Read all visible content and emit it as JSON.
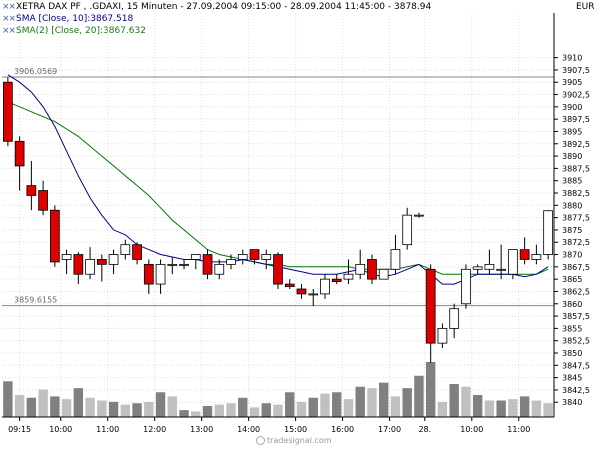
{
  "header": {
    "main_label": "XETRA DAX PF   , .GDAXI, 15 Minuten - 27.09.2004 09:15:00 - 28.09.2004 11:45:00 - 3878.94",
    "sma10_label": "SMA [Close, 10]:3867.518",
    "sma20_label": "SMA(2) [Close, 20]:3867.632",
    "currency": "EUR"
  },
  "watermark": "tradesignal.com",
  "colors": {
    "up_candle": "#ffffff",
    "down_candle": "#dd0000",
    "sma10": "#00008b",
    "sma20": "#007700",
    "grid": "#dddddd",
    "hline": "#888888",
    "volume_dark": "#808080",
    "volume_light": "#c0c0c0"
  },
  "chart_data": {
    "type": "candlestick",
    "ylim": [
      3837,
      3915
    ],
    "y_ticks": [
      3840,
      3842.5,
      3845,
      3847.5,
      3850,
      3852.5,
      3855,
      3857.5,
      3860,
      3862.5,
      3865,
      3867.5,
      3870,
      3872.5,
      3875,
      3877.5,
      3880,
      3882.5,
      3885,
      3887.5,
      3890,
      3892.5,
      3895,
      3897.5,
      3900,
      3902.5,
      3905,
      3907.5,
      3910
    ],
    "y_tick_labels": [
      "3840",
      "3842,5",
      "3845",
      "3847,5",
      "3850",
      "3852,5",
      "3855",
      "3857,5",
      "3860",
      "3862,5",
      "3865",
      "3867,5",
      "3870",
      "3872,5",
      "3875",
      "3877,5",
      "3880",
      "3882,5",
      "3885",
      "3887,5",
      "3890",
      "3892,5",
      "3895",
      "3897,5",
      "3900",
      "3902,5",
      "3905",
      "3907,5",
      "3910"
    ],
    "x_tick_labels": [
      {
        "bar": 1,
        "label": "09:15"
      },
      {
        "bar": 5,
        "label": "10:00"
      },
      {
        "bar": 9,
        "label": "11:00"
      },
      {
        "bar": 13,
        "label": "12:00"
      },
      {
        "bar": 17,
        "label": "13:00"
      },
      {
        "bar": 21,
        "label": "14:00"
      },
      {
        "bar": 25,
        "label": "15:00"
      },
      {
        "bar": 29,
        "label": "16:00"
      },
      {
        "bar": 33,
        "label": "17:00"
      },
      {
        "bar": 36,
        "label": "28."
      },
      {
        "bar": 40,
        "label": "10:00"
      },
      {
        "bar": 44,
        "label": "11:00"
      }
    ],
    "reference_lines": [
      {
        "value": 3906.0569,
        "label": "3906.0569"
      },
      {
        "value": 3859.6155,
        "label": "3859.6155"
      }
    ],
    "candles": [
      {
        "o": 3905,
        "h": 3906,
        "c": 3893,
        "l": 3892
      },
      {
        "o": 3893,
        "h": 3894,
        "c": 3888,
        "l": 3883
      },
      {
        "o": 3884,
        "h": 3889,
        "c": 3882,
        "l": 3879
      },
      {
        "o": 3883,
        "h": 3885,
        "c": 3879,
        "l": 3878
      },
      {
        "o": 3879,
        "h": 3880,
        "c": 3868.5,
        "l": 3867.5
      },
      {
        "o": 3869,
        "h": 3871,
        "c": 3870,
        "l": 3866
      },
      {
        "o": 3870,
        "h": 3870.5,
        "c": 3866,
        "l": 3864
      },
      {
        "o": 3866,
        "h": 3871.5,
        "c": 3869,
        "l": 3865
      },
      {
        "o": 3869,
        "h": 3870,
        "c": 3868,
        "l": 3864.5
      },
      {
        "o": 3868,
        "h": 3871,
        "c": 3870,
        "l": 3866
      },
      {
        "o": 3870,
        "h": 3873,
        "c": 3872,
        "l": 3869
      },
      {
        "o": 3872,
        "h": 3872.5,
        "c": 3869,
        "l": 3868
      },
      {
        "o": 3868,
        "h": 3869,
        "c": 3864,
        "l": 3862
      },
      {
        "o": 3864,
        "h": 3869,
        "c": 3868,
        "l": 3862
      },
      {
        "o": 3868,
        "h": 3869.5,
        "c": 3868,
        "l": 3866
      },
      {
        "o": 3868,
        "h": 3869,
        "c": 3868,
        "l": 3867
      },
      {
        "o": 3869,
        "h": 3870,
        "c": 3870,
        "l": 3867
      },
      {
        "o": 3870,
        "h": 3871,
        "c": 3866,
        "l": 3865
      },
      {
        "o": 3866,
        "h": 3869,
        "c": 3868,
        "l": 3865
      },
      {
        "o": 3868,
        "h": 3870,
        "c": 3869,
        "l": 3867
      },
      {
        "o": 3869,
        "h": 3871,
        "c": 3870,
        "l": 3868
      },
      {
        "o": 3871,
        "h": 3871,
        "c": 3869,
        "l": 3868
      },
      {
        "o": 3869,
        "h": 3871,
        "c": 3870,
        "l": 3867
      },
      {
        "o": 3870,
        "h": 3870.5,
        "c": 3864,
        "l": 3863
      },
      {
        "o": 3864,
        "h": 3865,
        "c": 3863.5,
        "l": 3863
      },
      {
        "o": 3863,
        "h": 3864,
        "c": 3862,
        "l": 3861
      },
      {
        "o": 3862,
        "h": 3863,
        "c": 3862,
        "l": 3859.5
      },
      {
        "o": 3862,
        "h": 3866,
        "c": 3865,
        "l": 3861
      },
      {
        "o": 3865,
        "h": 3866,
        "c": 3864.5,
        "l": 3864
      },
      {
        "o": 3865,
        "h": 3869,
        "c": 3866,
        "l": 3864
      },
      {
        "o": 3866,
        "h": 3871,
        "c": 3868,
        "l": 3865
      },
      {
        "o": 3869,
        "h": 3870,
        "c": 3865,
        "l": 3864
      },
      {
        "o": 3865,
        "h": 3867,
        "c": 3867,
        "l": 3865
      },
      {
        "o": 3867,
        "h": 3874,
        "c": 3871,
        "l": 3866
      },
      {
        "o": 3872,
        "h": 3879.5,
        "c": 3878,
        "l": 3871
      },
      {
        "o": 3878,
        "h": 3878.5,
        "c": 3878,
        "l": 3877.5
      },
      {
        "o": 3867,
        "h": 3868,
        "c": 3852,
        "l": 3848
      },
      {
        "o": 3852,
        "h": 3856,
        "c": 3855,
        "l": 3851
      },
      {
        "o": 3855,
        "h": 3860,
        "c": 3859,
        "l": 3853
      },
      {
        "o": 3860,
        "h": 3868,
        "c": 3867,
        "l": 3859
      },
      {
        "o": 3867,
        "h": 3868,
        "c": 3867.5,
        "l": 3866
      },
      {
        "o": 3867,
        "h": 3871,
        "c": 3868,
        "l": 3866
      },
      {
        "o": 3867,
        "h": 3872,
        "c": 3867,
        "l": 3865
      },
      {
        "o": 3866,
        "h": 3871,
        "c": 3871,
        "l": 3865
      },
      {
        "o": 3871,
        "h": 3873.5,
        "c": 3869,
        "l": 3868
      },
      {
        "o": 3869,
        "h": 3872,
        "c": 3870,
        "l": 3868
      },
      {
        "o": 3870,
        "h": 3879,
        "c": 3878.9,
        "l": 3869
      }
    ],
    "sma10": [
      3906.5,
      3905,
      3903,
      3900,
      3896,
      3891,
      3886,
      3881.5,
      3878,
      3875,
      3874,
      3872,
      3871,
      3870,
      3869.5,
      3869,
      3869,
      3868.5,
      3868.5,
      3868.5,
      3869,
      3868.5,
      3868,
      3867.5,
      3867,
      3866.5,
      3866,
      3866,
      3866,
      3866.5,
      3867,
      3866,
      3865.5,
      3866,
      3867,
      3868,
      3866,
      3864,
      3864,
      3865,
      3866,
      3866,
      3866,
      3866,
      3865.5,
      3866,
      3867.5
    ],
    "sma20": [
      3901,
      3900,
      3899,
      3898,
      3897,
      3895.5,
      3894,
      3892,
      3890,
      3888,
      3886,
      3884,
      3882,
      3879.5,
      3877,
      3875,
      3873,
      3871,
      3870,
      3869.5,
      3869,
      3868.5,
      3868,
      3868,
      3867.5,
      3867.5,
      3867.5,
      3867.5,
      3867.5,
      3867.5,
      3867,
      3867,
      3867,
      3867,
      3867.5,
      3868,
      3867,
      3866,
      3866,
      3866,
      3866,
      3866,
      3866,
      3866,
      3866,
      3866,
      3867
    ],
    "volume": [
      26,
      16,
      14,
      20,
      15,
      13,
      21,
      14,
      12,
      11,
      9,
      10,
      11,
      18,
      15,
      5,
      4,
      8,
      9,
      10,
      14,
      7,
      10,
      9,
      18,
      11,
      14,
      17,
      18,
      13,
      22,
      21,
      25,
      15,
      21,
      30,
      40,
      11,
      24,
      22,
      16,
      12,
      12,
      13,
      15,
      12,
      10
    ],
    "volume_shade": [
      "d",
      "l",
      "d",
      "l",
      "d",
      "l",
      "d",
      "l",
      "l",
      "d",
      "l",
      "d",
      "l",
      "d",
      "l",
      "d",
      "l",
      "d",
      "l",
      "l",
      "d",
      "l",
      "d",
      "l",
      "d",
      "l",
      "d",
      "l",
      "d",
      "l",
      "d",
      "l",
      "d",
      "l",
      "d",
      "d",
      "d",
      "l",
      "d",
      "l",
      "d",
      "l",
      "d",
      "l",
      "d",
      "l",
      "l"
    ],
    "volume_max": 40
  }
}
